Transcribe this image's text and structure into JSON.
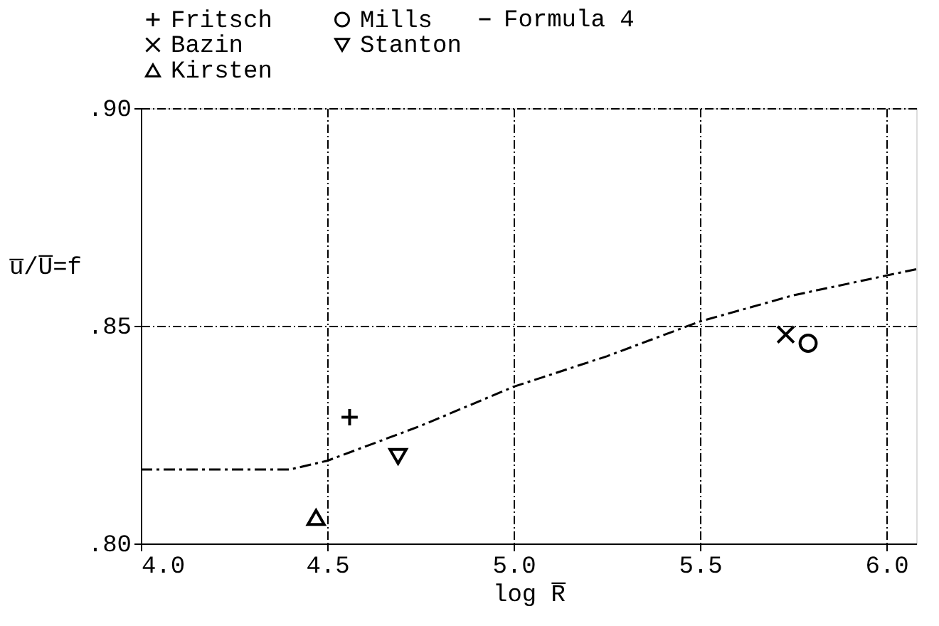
{
  "chart_data": {
    "type": "scatter",
    "xlabel": "log R̅",
    "ylabel": "u̅/U̅=f",
    "xlim": [
      4.0,
      6.08
    ],
    "xticks": [
      {
        "value": 4.0,
        "label": "4.0"
      },
      {
        "value": 4.5,
        "label": "4.5"
      },
      {
        "value": 5.0,
        "label": "5.0"
      },
      {
        "value": 5.5,
        "label": "5.5"
      },
      {
        "value": 6.0,
        "label": "6.0"
      }
    ],
    "ylim": [
      0.8,
      0.9
    ],
    "yticks": [
      {
        "value": 0.8,
        "label": ".80"
      },
      {
        "value": 0.85,
        "label": ".85"
      },
      {
        "value": 0.9,
        "label": ".90"
      }
    ],
    "grid": true,
    "legend": "top",
    "series": [
      {
        "name": "Fritsch",
        "color": "#000000",
        "marker": "cross",
        "x": [
          4.56
        ],
        "values": [
          0.829
        ]
      },
      {
        "name": "Mills",
        "color": "#000000",
        "marker": "circle",
        "x": [
          5.79
        ],
        "values": [
          0.846
        ]
      },
      {
        "name": "Bazin",
        "color": "#000000",
        "marker": "x",
        "x": [
          5.73
        ],
        "values": [
          0.848
        ]
      },
      {
        "name": "Stanton",
        "color": "#000000",
        "marker": "triangle-down",
        "x": [
          4.69
        ],
        "values": [
          0.82
        ]
      },
      {
        "name": "Kirsten",
        "color": "#000000",
        "marker": "triangle",
        "x": [
          4.47
        ],
        "values": [
          0.806
        ]
      },
      {
        "name": "Formula 4",
        "type": "line",
        "color": "#000000",
        "line_style": "dashed",
        "x": [
          4.0,
          4.2,
          4.4,
          4.5,
          4.75,
          5.0,
          5.25,
          5.5,
          5.75,
          6.08
        ],
        "values": [
          0.817,
          0.817,
          0.817,
          0.819,
          0.827,
          0.836,
          0.843,
          0.851,
          0.857,
          0.863
        ]
      }
    ]
  }
}
